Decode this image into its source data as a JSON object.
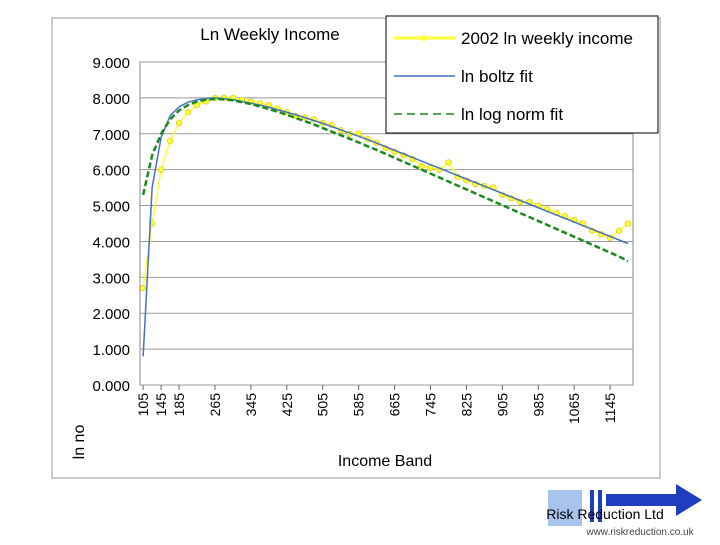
{
  "chart_data": {
    "type": "line",
    "title": "Ln Weekly Income",
    "x_label": "Income Band",
    "y_label": "ln no",
    "x": [
      105,
      125,
      145,
      165,
      185,
      205,
      225,
      245,
      265,
      285,
      305,
      325,
      345,
      365,
      385,
      405,
      425,
      445,
      465,
      485,
      505,
      525,
      545,
      565,
      585,
      605,
      625,
      645,
      665,
      685,
      705,
      725,
      745,
      765,
      785,
      805,
      825,
      845,
      865,
      885,
      905,
      925,
      945,
      965,
      985,
      1005,
      1025,
      1045,
      1065,
      1085,
      1105,
      1125,
      1145,
      1165,
      1185
    ],
    "series": [
      {
        "name": "2002 ln weekly income",
        "color": "#ffff33",
        "values": [
          2.7,
          4.5,
          6.0,
          6.8,
          7.3,
          7.6,
          7.8,
          7.9,
          8.0,
          8.0,
          8.0,
          7.95,
          7.9,
          7.85,
          7.8,
          7.7,
          7.6,
          7.5,
          7.45,
          7.4,
          7.3,
          7.25,
          7.1,
          7.0,
          7.0,
          6.85,
          6.75,
          6.6,
          6.5,
          6.4,
          6.3,
          6.1,
          6.05,
          6.0,
          6.2,
          5.8,
          5.7,
          5.6,
          5.55,
          5.5,
          5.3,
          5.2,
          5.1,
          5.1,
          5.0,
          4.9,
          4.8,
          4.7,
          4.6,
          4.5,
          4.3,
          4.2,
          4.1,
          4.3,
          4.5
        ]
      },
      {
        "name": "ln boltz fit",
        "color": "#4472c4",
        "values": [
          0.8,
          5.5,
          6.9,
          7.5,
          7.75,
          7.88,
          7.95,
          7.98,
          8.0,
          7.98,
          7.95,
          7.9,
          7.85,
          7.8,
          7.74,
          7.67,
          7.6,
          7.53,
          7.45,
          7.37,
          7.29,
          7.2,
          7.11,
          7.02,
          6.93,
          6.84,
          6.74,
          6.64,
          6.54,
          6.44,
          6.34,
          6.24,
          6.14,
          6.04,
          5.94,
          5.84,
          5.74,
          5.64,
          5.54,
          5.44,
          5.34,
          5.24,
          5.14,
          5.04,
          4.94,
          4.84,
          4.74,
          4.64,
          4.54,
          4.44,
          4.34,
          4.24,
          4.14,
          4.04,
          3.94
        ]
      },
      {
        "name": "ln log norm fit",
        "color": "#1a8a1a",
        "dashed": true,
        "values": [
          5.3,
          6.4,
          7.0,
          7.4,
          7.65,
          7.8,
          7.9,
          7.95,
          7.97,
          7.96,
          7.93,
          7.88,
          7.83,
          7.76,
          7.69,
          7.61,
          7.53,
          7.44,
          7.35,
          7.26,
          7.16,
          7.06,
          6.96,
          6.86,
          6.76,
          6.65,
          6.55,
          6.44,
          6.33,
          6.22,
          6.11,
          6.0,
          5.89,
          5.78,
          5.67,
          5.56,
          5.45,
          5.34,
          5.23,
          5.12,
          5.01,
          4.9,
          4.79,
          4.68,
          4.57,
          4.46,
          4.35,
          4.24,
          4.13,
          4.02,
          3.91,
          3.8,
          3.69,
          3.58,
          3.45
        ]
      }
    ],
    "xlim": [
      98,
      1196
    ],
    "xticks": [
      105,
      145,
      185,
      265,
      345,
      425,
      505,
      585,
      665,
      745,
      825,
      905,
      985,
      1065,
      1145
    ],
    "ylim": [
      0,
      9
    ],
    "yticks": [
      {
        "value": 0,
        "label": "0.000"
      },
      {
        "value": 1,
        "label": "1.000"
      },
      {
        "value": 2,
        "label": "2.000"
      },
      {
        "value": 3,
        "label": "3.000"
      },
      {
        "value": 4,
        "label": "4.000"
      },
      {
        "value": 5,
        "label": "5.000"
      },
      {
        "value": 6,
        "label": "6.000"
      },
      {
        "value": 7,
        "label": "7.000"
      },
      {
        "value": 8,
        "label": "8.000"
      },
      {
        "value": 9,
        "label": "9.000"
      }
    ],
    "grid": true,
    "legend": "top right"
  },
  "footer": {
    "company": "Risk Reduction Ltd",
    "url": "www.riskreduction.co.uk"
  }
}
